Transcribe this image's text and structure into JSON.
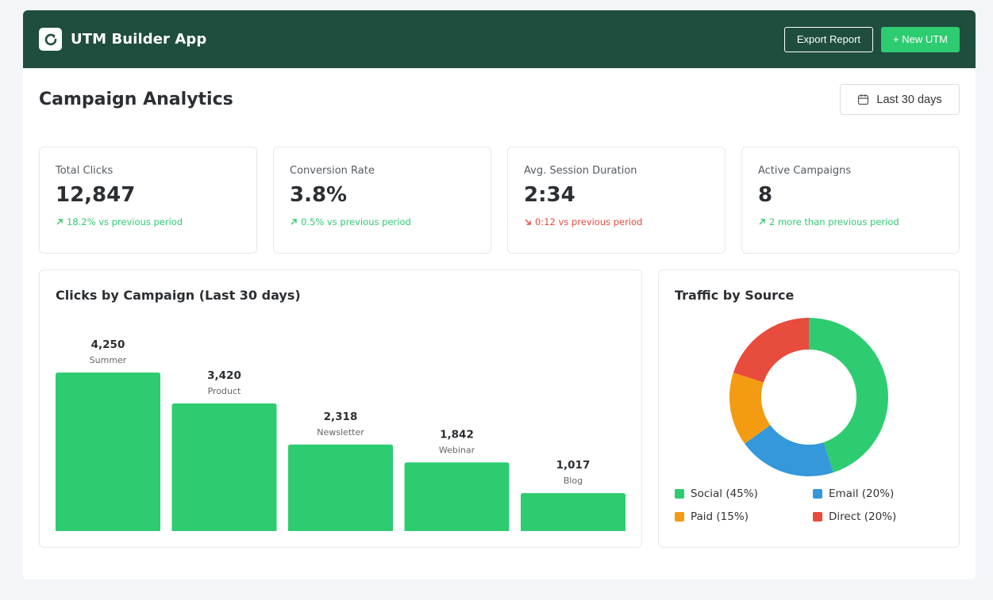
{
  "header": {
    "app_title": "UTM Builder App",
    "logo_icon": "refresh-icon",
    "export_label": "Export Report",
    "new_label": "+ New UTM"
  },
  "page": {
    "title": "Campaign Analytics",
    "date_range": "Last 30 days",
    "date_icon": "calendar-icon"
  },
  "stats": [
    {
      "label": "Total Clicks",
      "value": "12,847",
      "change": "18.2% vs previous period",
      "trend": "up"
    },
    {
      "label": "Conversion Rate",
      "value": "3.8%",
      "change": "0.5% vs previous period",
      "trend": "up"
    },
    {
      "label": "Avg. Session Duration",
      "value": "2:34",
      "change": "0:12 vs previous period",
      "trend": "down"
    },
    {
      "label": "Active Campaigns",
      "value": "8",
      "change": "2 more than previous period",
      "trend": "up"
    }
  ],
  "colors": {
    "brand": "#1f4d3e",
    "accent": "#2ecc71",
    "up": "#2ecc71",
    "down": "#e74c3c"
  },
  "chart_data": [
    {
      "type": "bar",
      "title": "Clicks by Campaign (Last 30 days)",
      "categories": [
        "Summer",
        "Product",
        "Newsletter",
        "Webinar",
        "Blog"
      ],
      "values": [
        4250,
        3420,
        2318,
        1842,
        1017
      ],
      "value_labels": [
        "4,250",
        "3,420",
        "2,318",
        "1,842",
        "1,017"
      ],
      "color": "#2ecc71"
    },
    {
      "type": "pie",
      "title": "Traffic by Source",
      "slices": [
        {
          "label": "Social (45%)",
          "value": 45,
          "color": "#2ecc71"
        },
        {
          "label": "Email (20%)",
          "value": 20,
          "color": "#3498db"
        },
        {
          "label": "Paid (15%)",
          "value": 15,
          "color": "#f39c12"
        },
        {
          "label": "Direct (20%)",
          "value": 20,
          "color": "#e74c3c"
        }
      ]
    }
  ]
}
